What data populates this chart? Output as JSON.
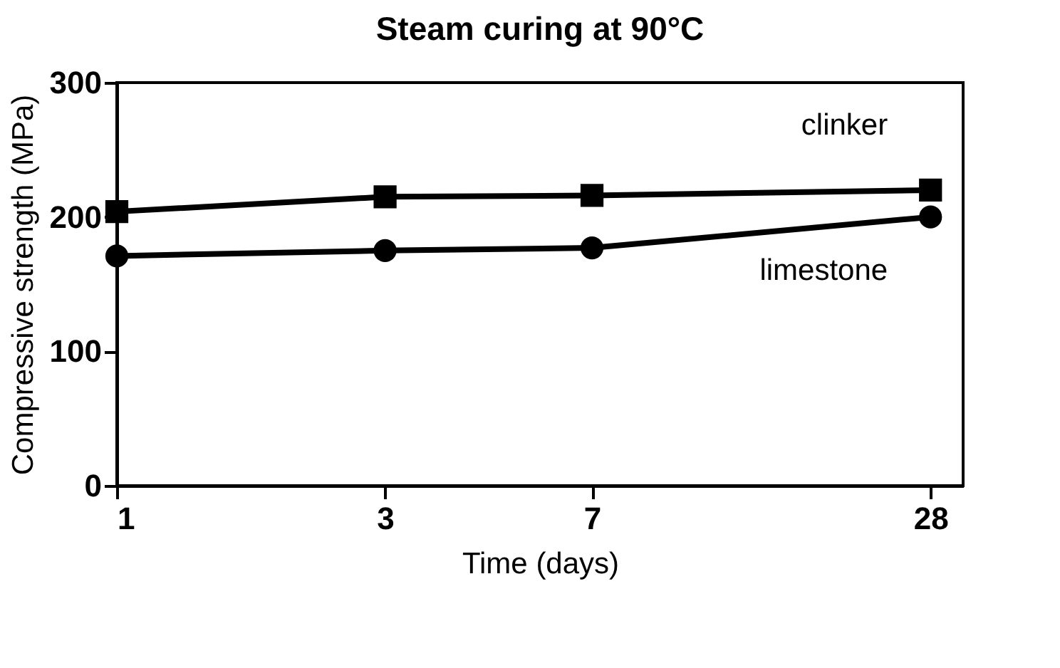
{
  "chart_data": {
    "type": "line",
    "title": "Steam curing at 90°C",
    "xlabel": "Time (days)",
    "ylabel": "Compressive strength (MPa)",
    "x": [
      1,
      3,
      7,
      28
    ],
    "series": [
      {
        "name": "clinker",
        "color": "#000000",
        "marker": "square",
        "values": [
          204,
          215,
          216,
          220
        ]
      },
      {
        "name": "limestone",
        "color": "#000000",
        "marker": "circle",
        "values": [
          171,
          175,
          177,
          200
        ]
      }
    ],
    "log": "x",
    "xlim": [
      1,
      32
    ],
    "xticks": [
      1,
      3,
      7,
      28
    ],
    "ylim": [
      0,
      300
    ],
    "yticks": [
      0,
      100,
      200,
      300
    ],
    "grid": false,
    "legend": false,
    "line_style": "solid"
  }
}
